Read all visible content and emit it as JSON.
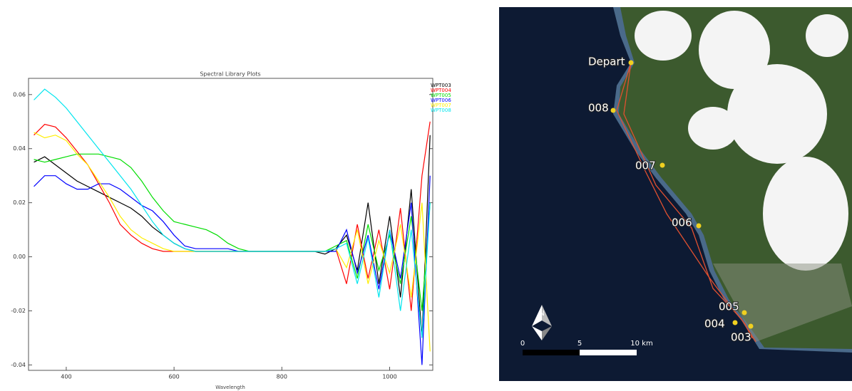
{
  "chart_data": {
    "type": "line",
    "title": "Spectral Library Plots",
    "x_label": "Wavelength",
    "x": [
      340,
      360,
      380,
      400,
      420,
      440,
      460,
      480,
      500,
      520,
      540,
      560,
      580,
      600,
      620,
      640,
      660,
      680,
      700,
      720,
      740,
      760,
      780,
      800,
      820,
      840,
      860,
      880,
      900,
      920,
      940,
      960,
      980,
      1000,
      1020,
      1040,
      1060,
      1075
    ],
    "series": [
      {
        "name": "WPT003",
        "color": "#000000",
        "values": [
          0.035,
          0.037,
          0.034,
          0.031,
          0.028,
          0.026,
          0.024,
          0.022,
          0.02,
          0.018,
          0.015,
          0.011,
          0.008,
          0.005,
          0.003,
          0.002,
          0.002,
          0.002,
          0.002,
          0.002,
          0.002,
          0.002,
          0.002,
          0.002,
          0.002,
          0.002,
          0.002,
          0.001,
          0.003,
          0.008,
          -0.005,
          0.02,
          -0.01,
          0.015,
          -0.015,
          0.025,
          -0.03,
          0.045
        ]
      },
      {
        "name": "WPT004",
        "color": "#ff0000",
        "values": [
          0.045,
          0.049,
          0.048,
          0.044,
          0.039,
          0.034,
          0.027,
          0.02,
          0.012,
          0.008,
          0.005,
          0.003,
          0.002,
          0.002,
          0.002,
          0.002,
          0.002,
          0.002,
          0.002,
          0.002,
          0.002,
          0.002,
          0.002,
          0.002,
          0.002,
          0.002,
          0.002,
          0.002,
          0.003,
          -0.01,
          0.012,
          -0.008,
          0.01,
          -0.012,
          0.018,
          -0.02,
          0.03,
          0.05
        ]
      },
      {
        "name": "WPT005",
        "color": "#00dd00",
        "values": [
          0.036,
          0.035,
          0.036,
          0.037,
          0.038,
          0.038,
          0.038,
          0.037,
          0.036,
          0.033,
          0.028,
          0.022,
          0.017,
          0.013,
          0.012,
          0.011,
          0.01,
          0.008,
          0.005,
          0.003,
          0.002,
          0.002,
          0.002,
          0.002,
          0.002,
          0.002,
          0.002,
          0.002,
          0.004,
          0.006,
          -0.008,
          0.012,
          -0.005,
          0.008,
          -0.01,
          0.015,
          -0.02,
          0.02
        ]
      },
      {
        "name": "WPT006",
        "color": "#0000ff",
        "values": [
          0.026,
          0.03,
          0.03,
          0.027,
          0.025,
          0.025,
          0.027,
          0.027,
          0.025,
          0.022,
          0.019,
          0.017,
          0.013,
          0.008,
          0.004,
          0.003,
          0.003,
          0.003,
          0.003,
          0.002,
          0.002,
          0.002,
          0.002,
          0.002,
          0.002,
          0.002,
          0.002,
          0.002,
          0.002,
          0.01,
          -0.006,
          0.008,
          -0.012,
          0.01,
          -0.008,
          0.02,
          -0.04,
          0.03
        ]
      },
      {
        "name": "WPT007",
        "color": "#ffee00",
        "values": [
          0.046,
          0.044,
          0.045,
          0.043,
          0.038,
          0.034,
          0.028,
          0.022,
          0.015,
          0.01,
          0.007,
          0.005,
          0.003,
          0.002,
          0.002,
          0.002,
          0.002,
          0.002,
          0.002,
          0.002,
          0.002,
          0.002,
          0.002,
          0.002,
          0.002,
          0.002,
          0.002,
          0.002,
          0.003,
          -0.004,
          0.01,
          -0.01,
          0.006,
          -0.006,
          0.012,
          -0.015,
          0.02,
          -0.035
        ]
      },
      {
        "name": "WPT008",
        "color": "#00e5ee",
        "values": [
          0.058,
          0.062,
          0.059,
          0.055,
          0.05,
          0.045,
          0.04,
          0.035,
          0.03,
          0.025,
          0.019,
          0.013,
          0.008,
          0.005,
          0.003,
          0.002,
          0.002,
          0.002,
          0.002,
          0.002,
          0.002,
          0.002,
          0.002,
          0.002,
          0.002,
          0.002,
          0.002,
          0.002,
          0.003,
          0.005,
          -0.01,
          0.007,
          -0.015,
          0.01,
          -0.02,
          0.01,
          -0.03,
          0.02
        ]
      }
    ],
    "xlim": [
      330,
      1080
    ],
    "xticks": [
      400,
      600,
      800,
      1000
    ],
    "ylim": [
      -0.042,
      0.066
    ],
    "yticks": [
      -0.04,
      -0.02,
      {
        "value": 0,
        "label": "0.00"
      },
      0.02,
      0.04,
      0.06
    ]
  },
  "map": {
    "labels": [
      "Depart",
      "008",
      "007",
      "006",
      "005",
      "004",
      "003"
    ],
    "north": "N",
    "scale": [
      "0",
      "5",
      "10 km"
    ]
  }
}
